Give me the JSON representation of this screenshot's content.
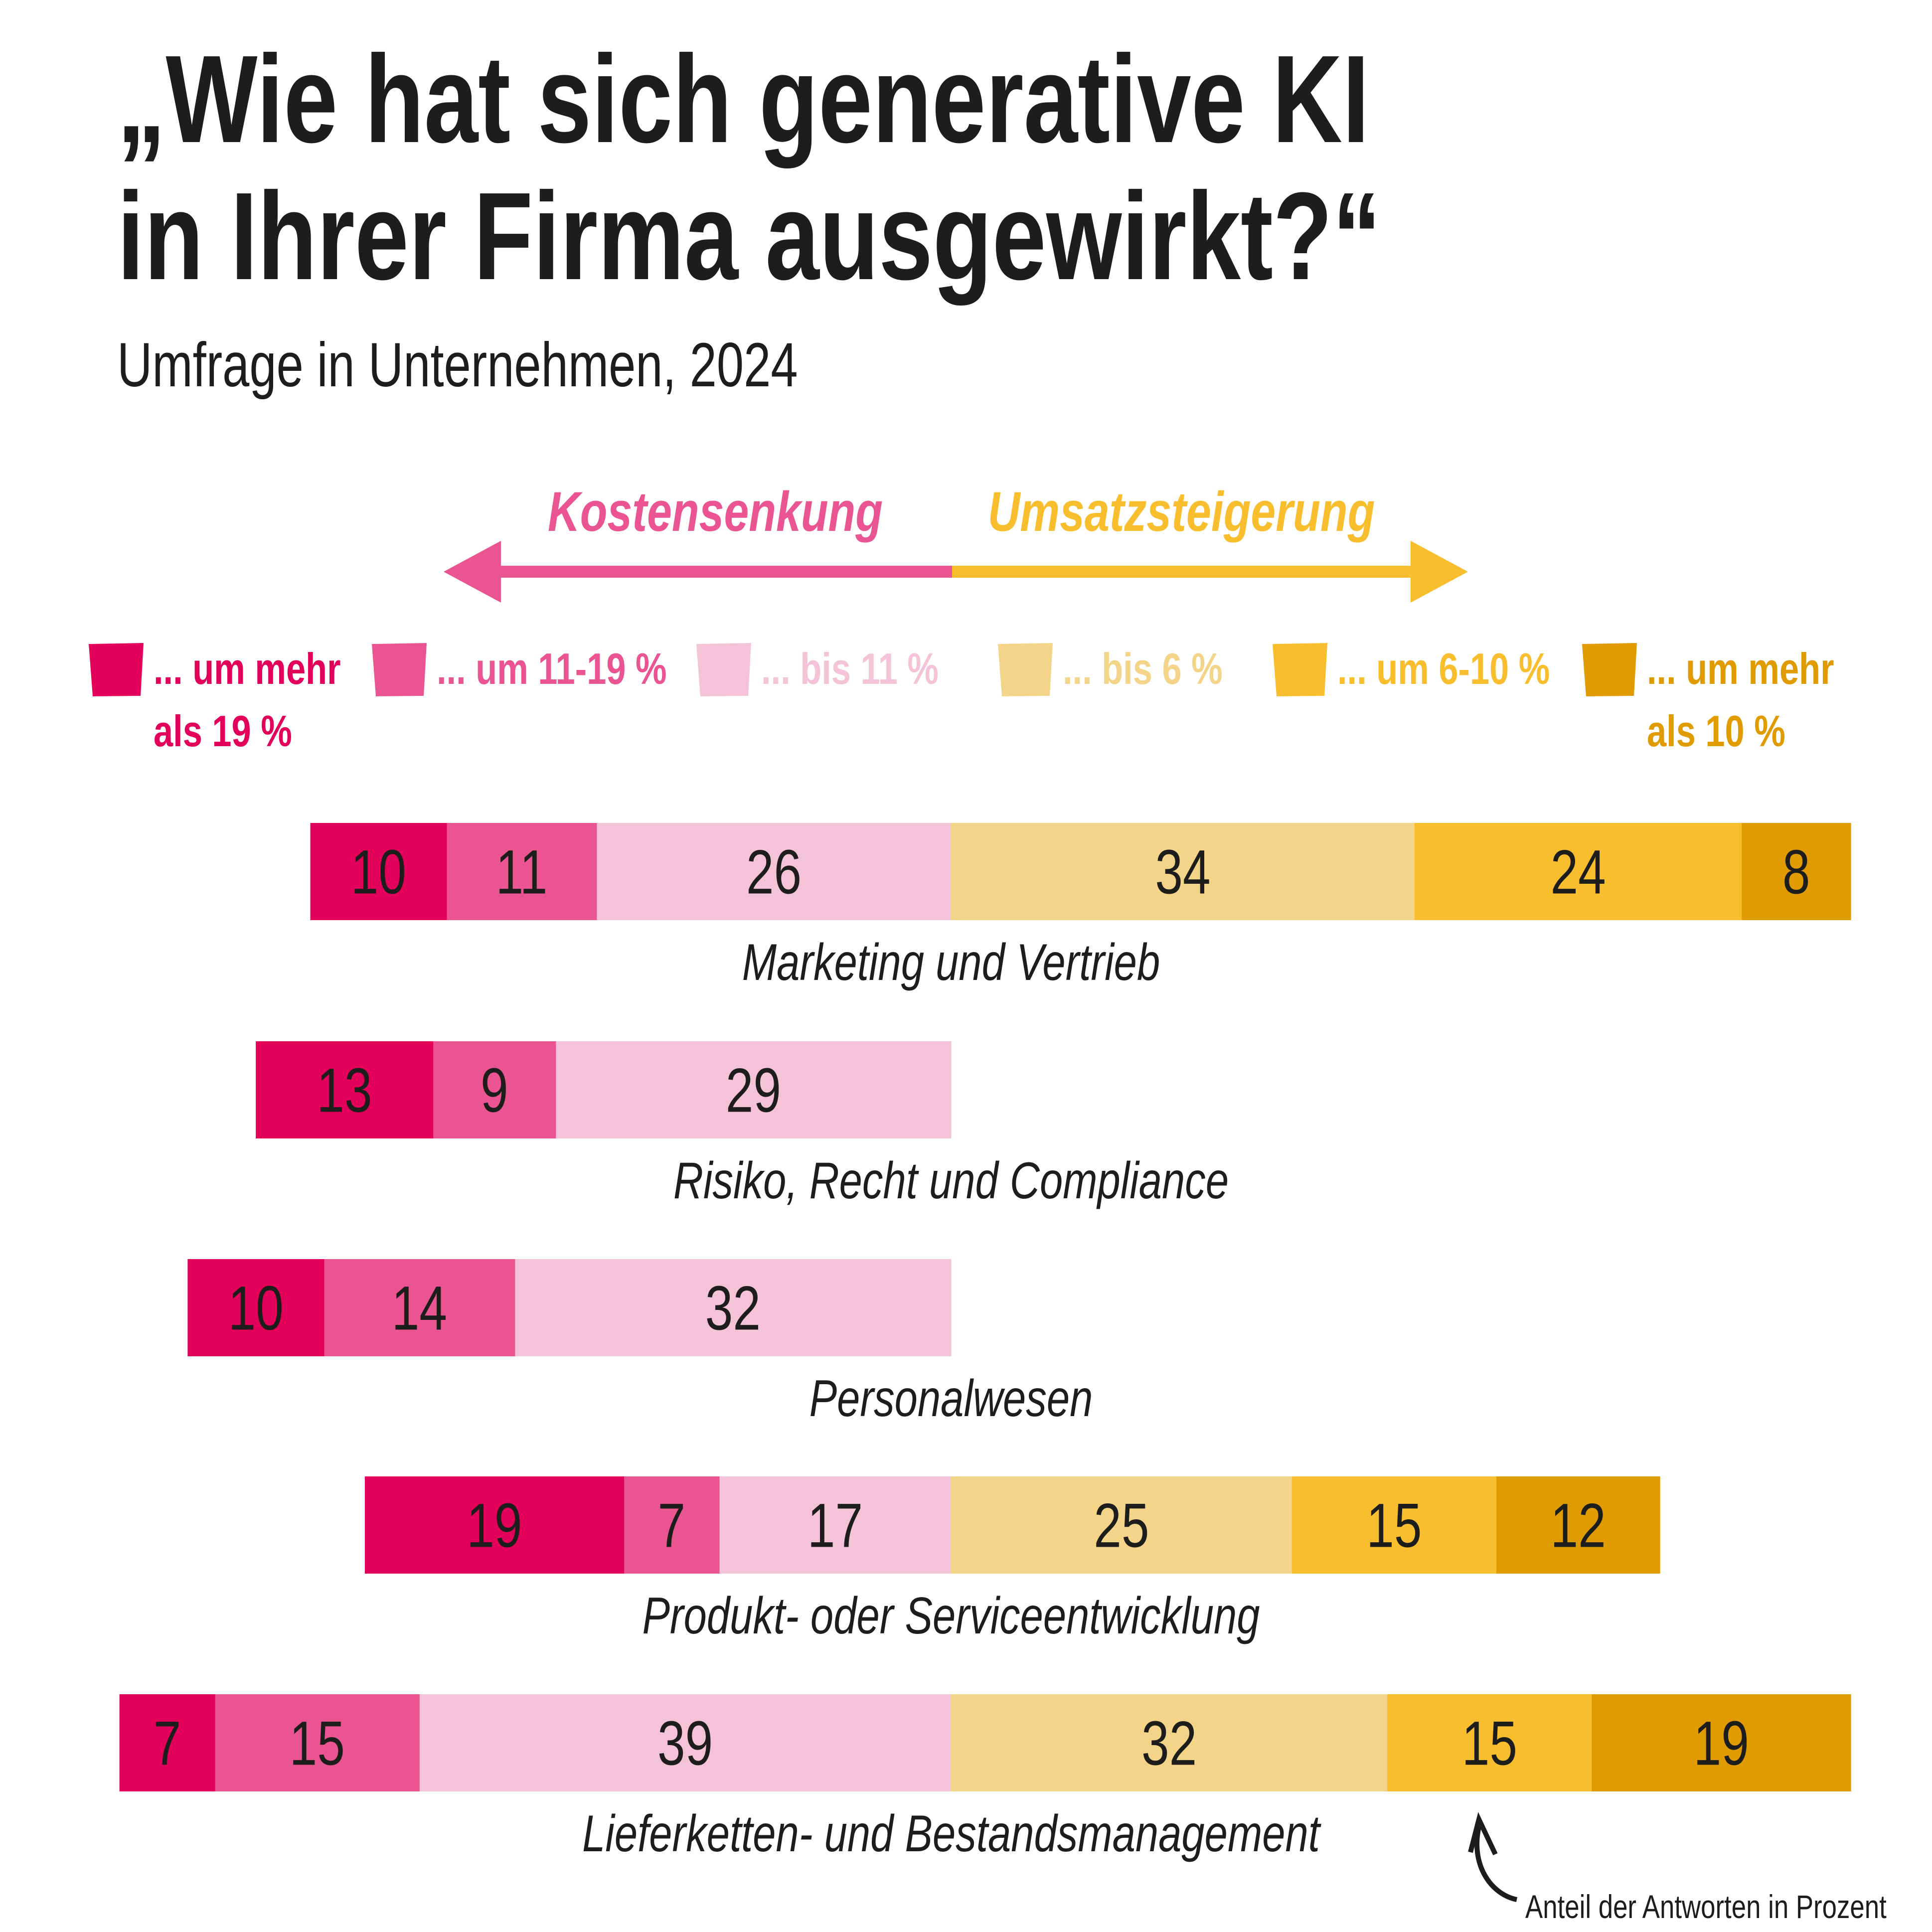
{
  "chart_data": {
    "type": "bar",
    "orientation": "horizontal-diverging-stacked",
    "title": "„Wie hat sich generative KI in Ihrer Firma ausgewirkt?“",
    "title_lines": [
      "„Wie hat sich generative KI",
      "in Ihrer Firma ausgewirkt?“"
    ],
    "subtitle": "Umfrage in Unternehmen, 2024",
    "direction_labels": {
      "left": "Kostensenkung",
      "right": "Umsatzsteigerung"
    },
    "direction_colors": {
      "left": "#ea5491",
      "right": "#f9be2d"
    },
    "legend": [
      {
        "lines": [
          "... um mehr",
          "als 19 %"
        ],
        "color": "#e3005b",
        "side": "left"
      },
      {
        "lines": [
          "... um 11-19 %"
        ],
        "color": "#ea5491",
        "side": "left"
      },
      {
        "lines": [
          "... bis 11 %"
        ],
        "color": "#f5c3d8",
        "side": "left"
      },
      {
        "lines": [
          "... bis 6 %"
        ],
        "color": "#f3d488",
        "side": "right"
      },
      {
        "lines": [
          "... um 6-10 %"
        ],
        "color": "#f9be2d",
        "side": "right"
      },
      {
        "lines": [
          "... um mehr",
          "als 10 %"
        ],
        "color": "#e09b00",
        "side": "right"
      }
    ],
    "series": [
      {
        "name": "... um mehr als 19 %",
        "values": [
          10,
          13,
          10,
          19,
          7
        ]
      },
      {
        "name": "... um 11-19 %",
        "values": [
          11,
          9,
          14,
          7,
          15
        ]
      },
      {
        "name": "... bis 11 %",
        "values": [
          26,
          29,
          32,
          17,
          39
        ]
      },
      {
        "name": "... bis 6 %",
        "values": [
          34,
          null,
          null,
          25,
          32
        ]
      },
      {
        "name": "... um 6-10 %",
        "values": [
          24,
          null,
          null,
          15,
          15
        ]
      },
      {
        "name": "... um mehr als 10 %",
        "values": [
          8,
          null,
          null,
          12,
          19
        ]
      }
    ],
    "categories": [
      "Marketing und Vertrieb",
      "Risiko, Recht und Compliance",
      "Personalwesen",
      "Produkt- oder Serviceentwicklung",
      "Lieferketten- und Bestandsmanagement"
    ],
    "unit_note": "Anteil der Antworten in Prozent",
    "grid": false
  }
}
